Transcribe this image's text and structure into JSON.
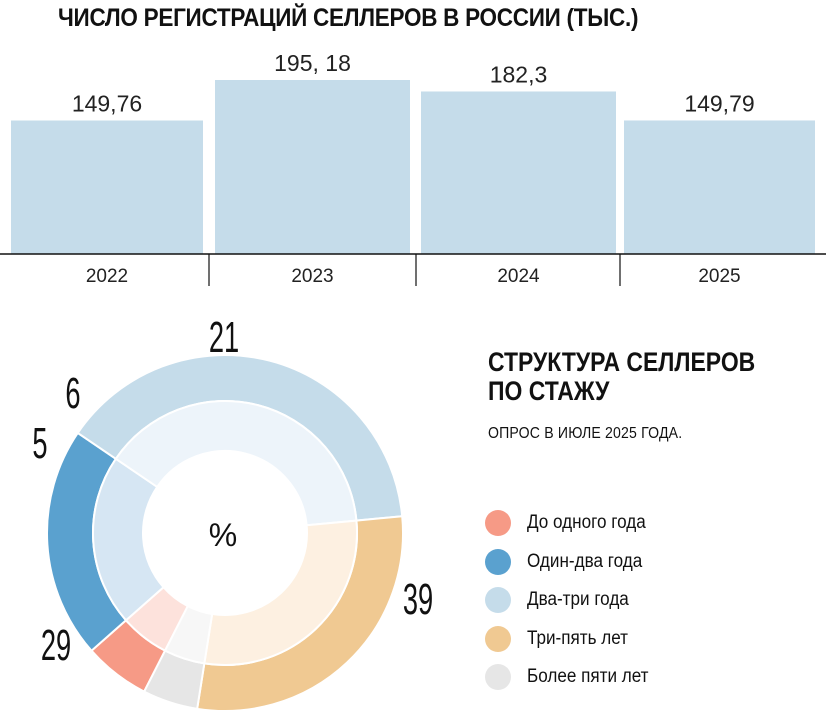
{
  "bar_chart": {
    "title": "ЧИСЛО РЕГИСТРАЦИЙ СЕЛЛЕРОВ В РОССИИ (ТЫС.)",
    "bar_color": "#c5dcea"
  },
  "donut": {
    "title_line1": "СТРУКТУРА СЕЛЛЕРОВ",
    "title_line2": "ПО СТАЖУ",
    "subtitle": "ОПРОС В ИЮЛЕ 2025 ГОДА.",
    "center_label": "%"
  },
  "chart_data": [
    {
      "type": "bar",
      "title": "ЧИСЛО РЕГИСТРАЦИЙ СЕЛЛЕРОВ В РОССИИ (ТЫС.)",
      "categories": [
        "2022",
        "2023",
        "2024",
        "2025"
      ],
      "values": [
        149.76,
        195.18,
        182.3,
        149.79
      ],
      "value_labels": [
        "149,76",
        "195, 18",
        "182,3",
        "149,79"
      ],
      "xlabel": "",
      "ylabel": "",
      "grid": false
    },
    {
      "type": "pie",
      "title": "СТРУКТУРА СЕЛЛЕРОВ ПО СТАЖУ",
      "center_label": "%",
      "legend_position": "right",
      "slices": [
        {
          "label": "До одного года",
          "value": 6,
          "color": "#f69a86",
          "inner_color": "#fde2dc"
        },
        {
          "label": "Один-два года",
          "value": 21,
          "color": "#5aa1cf",
          "inner_color": "#d6e6f3"
        },
        {
          "label": "Два-три года",
          "value": 39,
          "color": "#c5dcea",
          "inner_color": "#edf4fa"
        },
        {
          "label": "Три-пять лет",
          "value": 29,
          "color": "#f0c992",
          "inner_color": "#fdf0e1"
        },
        {
          "label": "Более пяти лет",
          "value": 5,
          "color": "#e6e6e6",
          "inner_color": "#f7f7f7"
        }
      ]
    }
  ]
}
